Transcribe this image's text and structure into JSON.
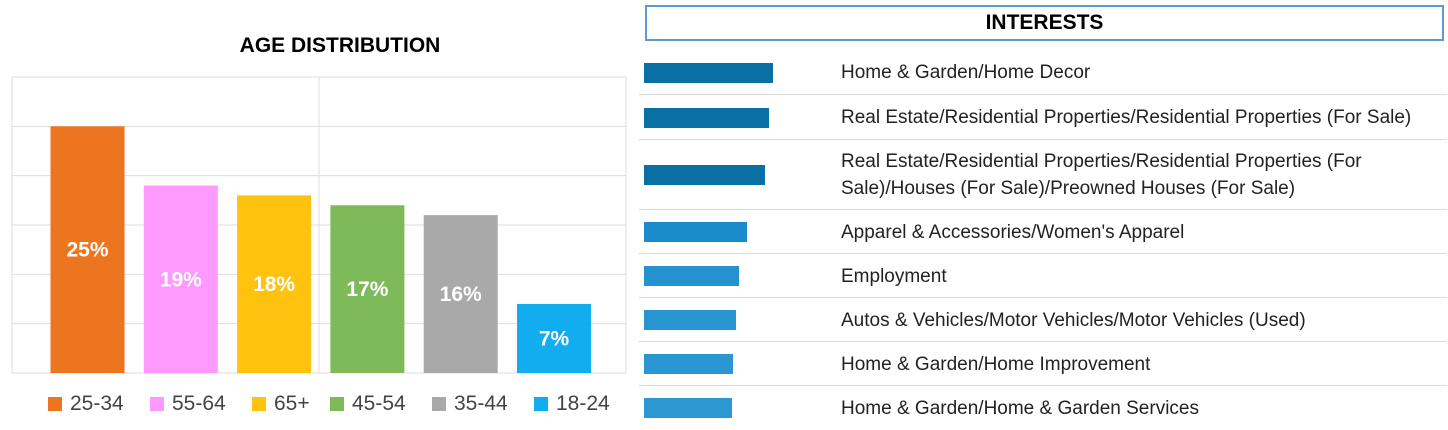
{
  "chart_data": [
    {
      "type": "bar",
      "title": "AGE DISTRIBUTION",
      "categories": [
        "25-34",
        "55-64",
        "65+",
        "45-54",
        "35-44",
        "18-24"
      ],
      "values": [
        25,
        19,
        18,
        17,
        16,
        7
      ],
      "data_labels": [
        "25%",
        "19%",
        "18%",
        "17%",
        "16%",
        "7%"
      ],
      "colors": [
        "#ed7520",
        "#ff99ff",
        "#ffc20e",
        "#7fba5a",
        "#a9a9a9",
        "#12adee"
      ],
      "legend": [
        "25-34",
        "55-64",
        "65+",
        "45-54",
        "35-44",
        "18-24"
      ],
      "legend_position": "bottom",
      "ylim": [
        0,
        30
      ],
      "grid": true
    },
    {
      "type": "bar",
      "orientation": "horizontal",
      "title": "INTERESTS",
      "categories": [
        "Home & Garden/Home Decor",
        "Real Estate/Residential Properties/Residential Properties (For Sale)",
        "Real Estate/Residential Properties/Residential Properties (For Sale)/Houses (For Sale)/Preowned Houses (For Sale)",
        "Apparel & Accessories/Women's Apparel",
        "Employment",
        "Autos & Vehicles/Motor Vehicles/Motor Vehicles (Used)",
        "Home & Garden/Home Improvement",
        "Home & Garden/Home & Garden Services"
      ],
      "values": [
        1.0,
        0.97,
        0.94,
        0.8,
        0.74,
        0.71,
        0.69,
        0.68
      ],
      "colors": [
        "#0a6fa2",
        "#0a6fa2",
        "#0a6fa2",
        "#1a8ccc",
        "#2492cf",
        "#2895d0",
        "#2a97d1",
        "#2c98d2"
      ]
    }
  ]
}
